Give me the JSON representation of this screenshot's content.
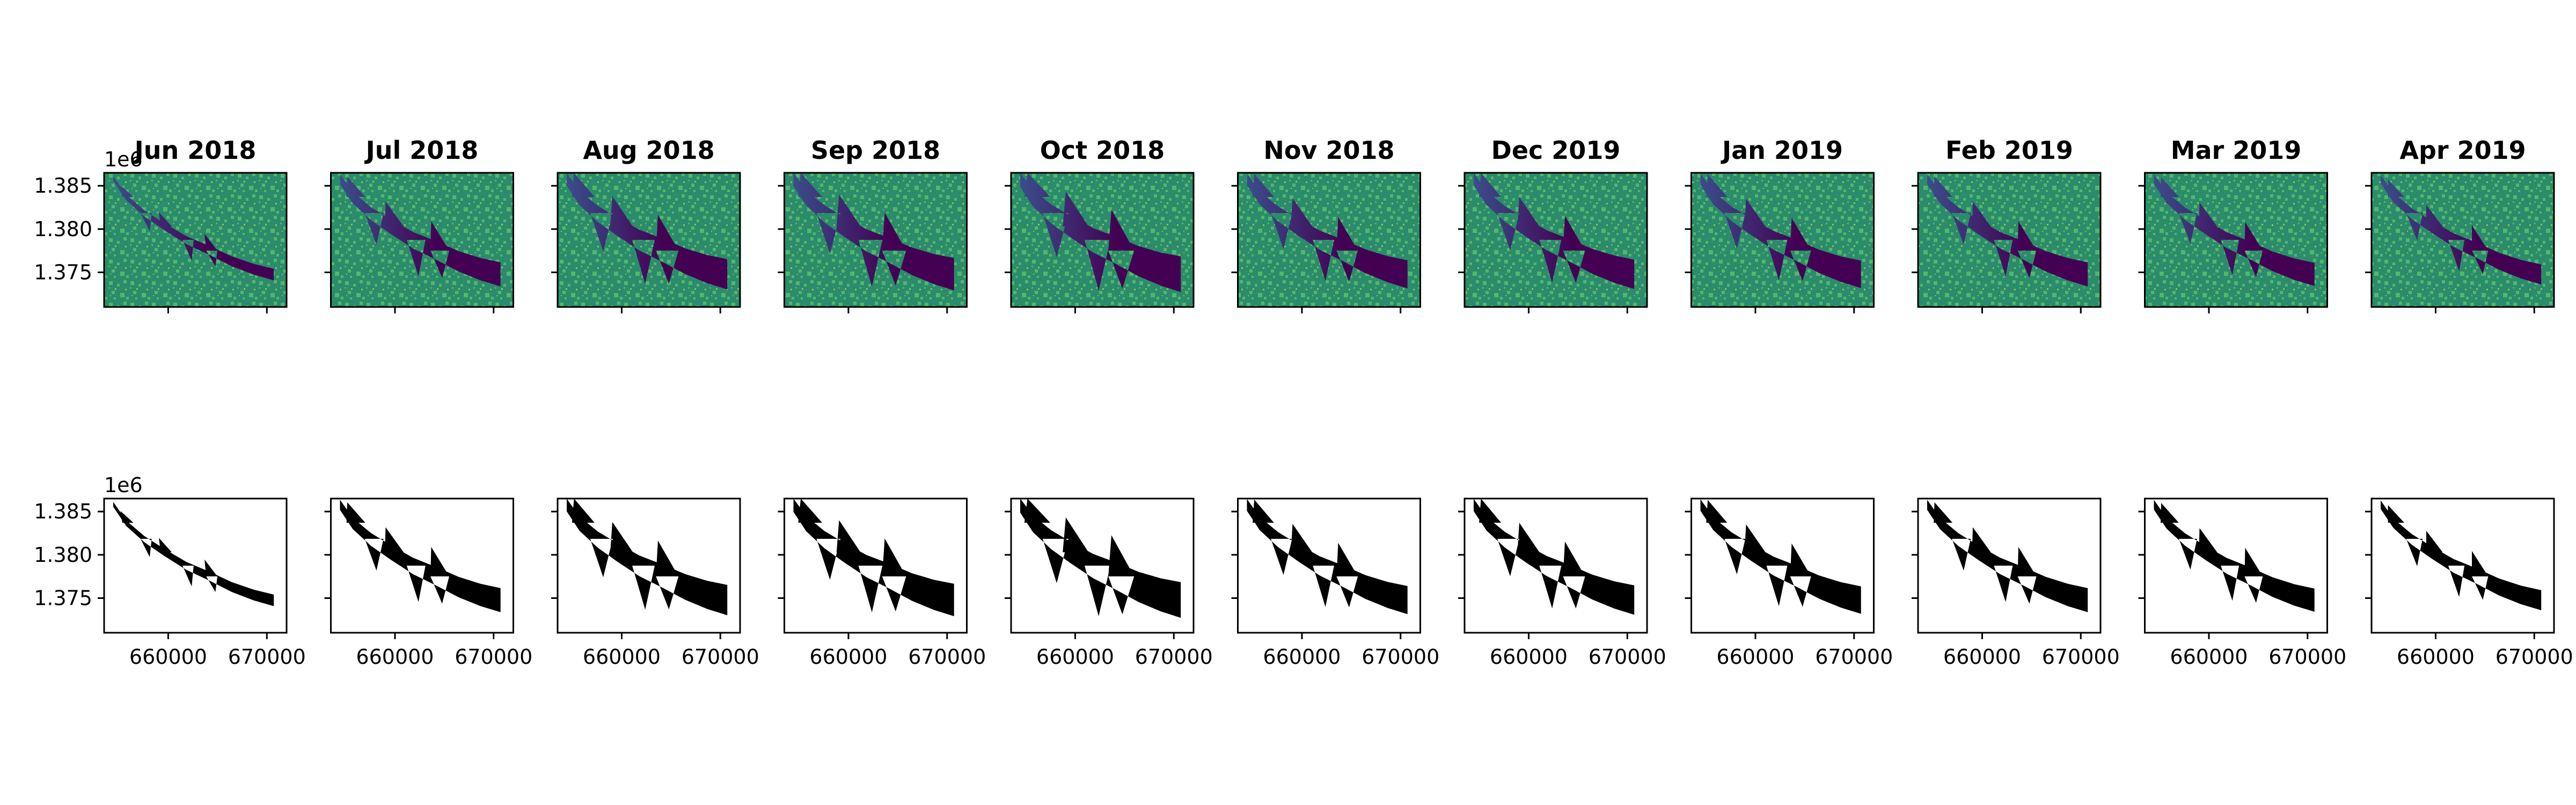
{
  "chart_data": {
    "type": "image-grid",
    "rows": [
      {
        "name": "",
        "style": "satellite"
      },
      {
        "name": "",
        "style": "water-mask"
      }
    ],
    "months": [
      "Jun 2018",
      "Jul 2018",
      "Aug 2018",
      "Sep 2018",
      "Oct 2018",
      "Nov 2018",
      "Dec 2019",
      "Jan 2019",
      "Feb 2019",
      "Mar 2019",
      "Apr 2019"
    ],
    "water_extent": [
      0.15,
      0.55,
      0.75,
      0.82,
      0.92,
      0.68,
      0.72,
      0.66,
      0.55,
      0.52,
      0.42
    ],
    "y_offset_label": "1e6",
    "y_ticks": [
      1.385,
      1.38,
      1.375
    ],
    "y_tick_labels": [
      "1.385",
      "1.380",
      "1.375"
    ],
    "x_ticks": [
      660000,
      670000
    ],
    "x_tick_labels": [
      "660000",
      "670000"
    ],
    "ylim": [
      1.371,
      1.3865
    ],
    "xlim": [
      653500,
      672000
    ],
    "colors": {
      "land_dark": "#2a8c6a",
      "land_light": "#5cc26d",
      "water_deep": "#440154",
      "water_shallow": "#3b4d8a",
      "mask": "#000000"
    }
  }
}
